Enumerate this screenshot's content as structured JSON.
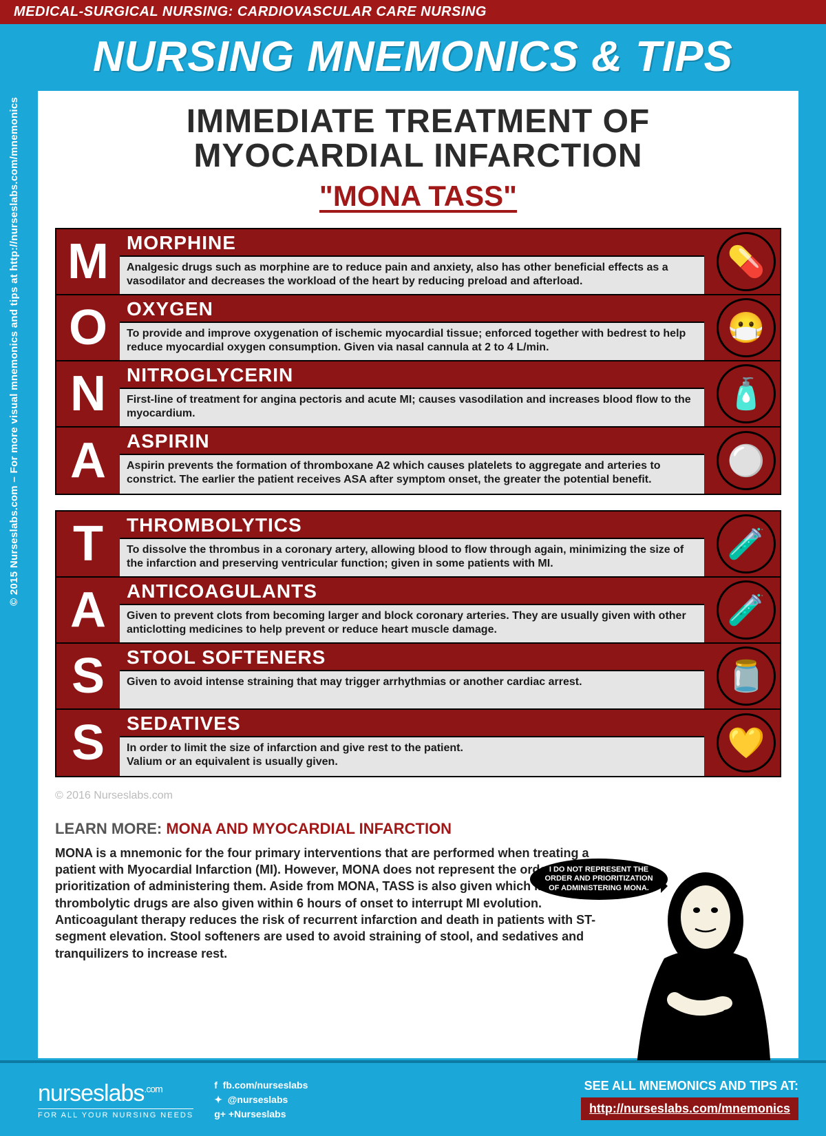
{
  "colors": {
    "brand_blue": "#1ba7d8",
    "brand_red": "#a01818",
    "dark_red": "#8e1515",
    "text_dark": "#2b2b2b",
    "desc_bg": "#e5e5e5"
  },
  "header": {
    "category": "MEDICAL-SURGICAL NURSING: CARDIOVASCULAR CARE NURSING",
    "title": "NURSING MNEMONICS & TIPS"
  },
  "content": {
    "title_line1": "IMMEDIATE TREATMENT OF",
    "title_line2": "MYOCARDIAL INFARCTION",
    "mnemonic_label": "\"MONA TASS\""
  },
  "groups": [
    {
      "rows": [
        {
          "letter": "M",
          "term": "MORPHINE",
          "icon": "💊",
          "desc": "Analgesic drugs such as morphine are to reduce pain and anxiety, also has other beneficial effects as a vasodilator and decreases the workload of the heart by reducing preload and afterload."
        },
        {
          "letter": "O",
          "term": "OXYGEN",
          "icon": "😷",
          "desc": "To provide and improve oxygenation of ischemic myocardial tissue; enforced together with bedrest to help reduce myocardial oxygen consumption. Given via nasal cannula at 2 to 4 L/min."
        },
        {
          "letter": "N",
          "term": "NITROGLYCERIN",
          "icon": "🧴",
          "desc": "First-line of treatment for angina pectoris and acute MI; causes vasodilation and increases blood flow to the myocardium."
        },
        {
          "letter": "A",
          "term": "ASPIRIN",
          "icon": "⚪",
          "desc": "Aspirin prevents the formation of thromboxane A2 which causes platelets to aggregate and arteries to constrict. The earlier the patient receives ASA after symptom onset, the greater the potential benefit."
        }
      ]
    },
    {
      "rows": [
        {
          "letter": "T",
          "term": "THROMBOLYTICS",
          "icon": "🧪",
          "desc": "To dissolve the thrombus in a coronary artery, allowing blood to flow through again, minimizing the size of the infarction and preserving ventricular function; given in some patients with MI."
        },
        {
          "letter": "A",
          "term": "ANTICOAGULANTS",
          "icon": "🧪",
          "desc": "Given to prevent clots from becoming larger and block coronary arteries. They are usually given with other anticlotting medicines to help prevent or reduce heart muscle damage."
        },
        {
          "letter": "S",
          "term": "STOOL SOFTENERS",
          "icon": "🫙",
          "desc": "Given to avoid intense straining that may trigger arrhythmias or another cardiac arrest."
        },
        {
          "letter": "S",
          "term": "SEDATIVES",
          "icon": "💛",
          "desc": "In order to limit the size of infarction and give rest to the patient.\nValium or an equivalent is usually given."
        }
      ]
    }
  ],
  "copyright_inline": "© 2016 Nurseslabs.com",
  "learn_more": {
    "lead": "LEARN MORE: ",
    "topic": "MONA AND MYOCARDIAL INFARCTION",
    "body": "MONA is a mnemonic for the four primary interventions that are performed when treating a patient with Myocardial Infarction (MI). However, MONA does not represent the order and prioritization of administering them. Aside from MONA, TASS is also given which includes thrombolytic drugs are also given within 6 hours of onset to interrupt MI evolution. Anticoagulant therapy reduces the risk of recurrent infarction and death in patients with ST-segment elevation. Stool softeners are used to avoid straining of stool, and sedatives and tranquilizers to increase rest."
  },
  "speech_bubble": "I DO NOT REPRESENT THE ORDER AND PRIORITIZATION OF ADMINISTERING MONA.",
  "side_text": "© 2015 Nurseslabs.com – For more visual mnemonics and tips at http://nurseslabs.com/mnemonics",
  "footer": {
    "logo_main": "nurseslabs",
    "logo_com": ".com",
    "logo_tag": "FOR ALL YOUR NURSING NEEDS",
    "socials": {
      "fb": "fb.com/nurseslabs",
      "tw": "@nurseslabs",
      "gp": "+Nurseslabs"
    },
    "see_all_label": "SEE ALL MNEMONICS AND TIPS AT:",
    "see_all_link": "http://nurseslabs.com/mnemonics"
  }
}
